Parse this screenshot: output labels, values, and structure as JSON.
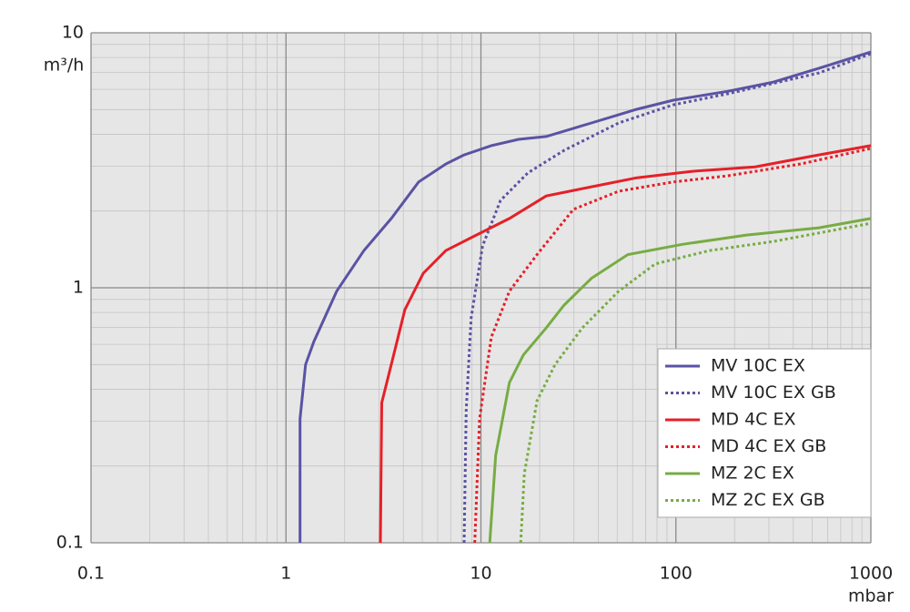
{
  "chart_data": {
    "type": "line",
    "xlabel": "mbar",
    "ylabel": "m³/h",
    "xscale": "log",
    "yscale": "log",
    "xlim": [
      0.1,
      1000
    ],
    "ylim": [
      0.1,
      10
    ],
    "xticks": [
      0.1,
      1,
      10,
      100,
      1000
    ],
    "yticks": [
      0.1,
      1,
      10
    ],
    "grid": true,
    "minor_grid": true,
    "legend": "lower right",
    "series": [
      {
        "name": "MV 10C EX",
        "color": "#5a53a3",
        "style": "solid",
        "x": [
          1.18,
          1.18,
          1.26,
          1.39,
          1.82,
          2.51,
          3.47,
          4.79,
          6.61,
          8.2,
          11.3,
          15.6,
          21.6,
          36.9,
          63,
          97,
          185,
          317,
          542,
          1000
        ],
        "values": [
          0.1,
          0.306,
          0.5,
          0.615,
          0.97,
          1.4,
          1.87,
          2.6,
          3.06,
          3.32,
          3.61,
          3.82,
          3.92,
          4.43,
          5.01,
          5.44,
          5.9,
          6.41,
          7.26,
          8.41
        ]
      },
      {
        "name": "MV 10C EX GB",
        "color": "#5a53a3",
        "style": "dotted",
        "x": [
          8.2,
          8.4,
          8.9,
          10.2,
          12.6,
          17.4,
          26.7,
          50.9,
          97,
          185,
          542,
          1000
        ],
        "values": [
          0.1,
          0.33,
          0.76,
          1.46,
          2.2,
          2.82,
          3.46,
          4.43,
          5.22,
          5.77,
          6.96,
          8.28
        ]
      },
      {
        "name": "MD 4C EX",
        "color": "#e52028",
        "style": "solid",
        "x": [
          3.05,
          3.1,
          3.47,
          4.07,
          5.06,
          6.61,
          9.1,
          14.0,
          21.6,
          36.9,
          63,
          120,
          255,
          487,
          1000
        ],
        "values": [
          0.1,
          0.354,
          0.5,
          0.82,
          1.14,
          1.4,
          1.585,
          1.87,
          2.29,
          2.49,
          2.7,
          2.86,
          2.98,
          3.27,
          3.61
        ]
      },
      {
        "name": "MD 4C EX GB",
        "color": "#e52028",
        "style": "dotted",
        "x": [
          9.3,
          9.84,
          11.3,
          14.0,
          19.4,
          29.8,
          50.9,
          97,
          185,
          437,
          1000
        ],
        "values": [
          0.1,
          0.306,
          0.64,
          0.97,
          1.35,
          2.03,
          2.39,
          2.6,
          2.75,
          3.06,
          3.52
        ]
      },
      {
        "name": "MZ 2C EX",
        "color": "#77ac44",
        "style": "solid",
        "x": [
          11.1,
          11.9,
          14.0,
          16.5,
          21.6,
          26.7,
          36.9,
          56.7,
          108,
          230,
          542,
          1000
        ],
        "values": [
          0.1,
          0.22,
          0.425,
          0.545,
          0.696,
          0.855,
          1.09,
          1.35,
          1.48,
          1.61,
          1.72,
          1.87
        ]
      },
      {
        "name": "MZ 2C EX GB",
        "color": "#77ac44",
        "style": "dotted",
        "x": [
          16.0,
          16.7,
          19.4,
          24.0,
          33.1,
          50.9,
          78.3,
          149,
          317,
          1000
        ],
        "values": [
          0.1,
          0.187,
          0.361,
          0.5,
          0.696,
          0.97,
          1.24,
          1.4,
          1.52,
          1.79
        ]
      }
    ]
  }
}
